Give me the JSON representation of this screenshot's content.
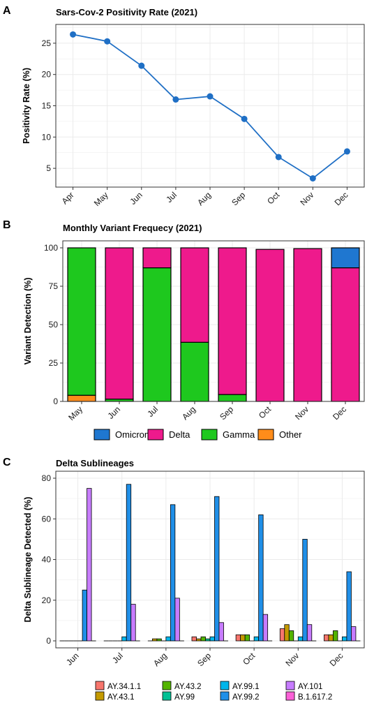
{
  "chart_data": [
    {
      "panel": "A",
      "type": "line",
      "title": "Sars-Cov-2 Positivity Rate (2021)",
      "xlabel": "",
      "ylabel": "Positivity Rate (%)",
      "categories": [
        "Apr",
        "May",
        "Jun",
        "Jul",
        "Aug",
        "Sep",
        "Oct",
        "Nov",
        "Dec"
      ],
      "values": [
        26.4,
        25.3,
        21.4,
        16.0,
        16.5,
        12.9,
        6.8,
        3.4,
        7.7
      ],
      "ylim": [
        2,
        28
      ],
      "yticks": [
        5,
        10,
        15,
        20,
        25
      ],
      "color": "#1f6fc5",
      "grid": true
    },
    {
      "panel": "B",
      "type": "bar",
      "stacked": true,
      "title": "Monthly Variant Frequecy (2021)",
      "xlabel": "",
      "ylabel": "Variant Detection (%)",
      "categories": [
        "May",
        "Jun",
        "Jul",
        "Aug",
        "Sep",
        "Oct",
        "Nov",
        "Dec"
      ],
      "series": [
        {
          "name": "Other",
          "color": "#ff8c1a",
          "values": [
            4,
            0,
            0,
            0,
            0,
            0,
            0,
            0
          ]
        },
        {
          "name": "Gamma",
          "color": "#1ec81e",
          "values": [
            96,
            1.5,
            87,
            38.5,
            4.5,
            0,
            0,
            0
          ]
        },
        {
          "name": "Delta",
          "color": "#ee1a8c",
          "values": [
            0,
            98.5,
            13,
            61.5,
            95.5,
            99,
            99.5,
            87
          ]
        },
        {
          "name": "Omicron",
          "color": "#1f77d0",
          "values": [
            0,
            0,
            0,
            0,
            0,
            0,
            0,
            13
          ]
        }
      ],
      "ylim": [
        0,
        100
      ],
      "yticks": [
        0,
        25,
        50,
        75,
        100
      ],
      "legend": {
        "placement": "bottom",
        "order": [
          "Omicron",
          "Delta",
          "Gamma",
          "Other"
        ]
      },
      "grid": true
    },
    {
      "panel": "C",
      "type": "bar",
      "stacked": false,
      "title": "Delta Sublineages",
      "xlabel": "",
      "ylabel": "Delta Sublineage Detected (%)",
      "categories": [
        "Jun",
        "Jul",
        "Aug",
        "Sep",
        "Oct",
        "Nov",
        "Dec"
      ],
      "series": [
        {
          "name": "AY.34.1.1",
          "color": "#f8766d",
          "values": [
            0,
            0,
            0,
            2,
            3,
            6,
            3
          ]
        },
        {
          "name": "AY.43.1",
          "color": "#c49a00",
          "values": [
            0,
            0,
            1,
            1,
            3,
            8,
            3
          ]
        },
        {
          "name": "AY.43.2",
          "color": "#53b400",
          "values": [
            0,
            0,
            1,
            2,
            3,
            5,
            5
          ]
        },
        {
          "name": "AY.99",
          "color": "#00c094",
          "values": [
            0,
            0,
            0,
            1,
            0,
            0,
            0
          ]
        },
        {
          "name": "AY.99.1",
          "color": "#00b6eb",
          "values": [
            0,
            2,
            2,
            2,
            2,
            2,
            2
          ]
        },
        {
          "name": "AY.99.2",
          "color": "#1f8fe8",
          "values": [
            25,
            77,
            67,
            71,
            62,
            50,
            34
          ]
        },
        {
          "name": "AY.101",
          "color": "#c77cff",
          "values": [
            75,
            18,
            21,
            9,
            13,
            8,
            7
          ]
        },
        {
          "name": "B.1.617.2",
          "color": "#fb61d7",
          "values": [
            0,
            0,
            0,
            0,
            0,
            0,
            0
          ]
        }
      ],
      "ylim": [
        0,
        80
      ],
      "yticks": [
        0,
        20,
        40,
        60,
        80
      ],
      "legend": {
        "placement": "bottom",
        "rows": [
          [
            "AY.34.1.1",
            "AY.43.2",
            "AY.99.1",
            "AY.101"
          ],
          [
            "AY.43.1",
            "AY.99",
            "AY.99.2",
            "B.1.617.2"
          ]
        ]
      },
      "grid": true
    }
  ]
}
